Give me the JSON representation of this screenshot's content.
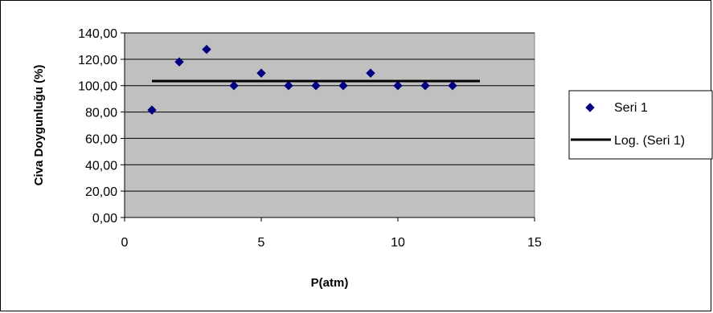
{
  "chart_data": {
    "type": "scatter",
    "title": "",
    "xlabel": "P(atm)",
    "ylabel": "Civa Doygunluğu (%)",
    "xlim": [
      0,
      15
    ],
    "ylim": [
      0,
      140
    ],
    "x_ticks": [
      "0",
      "5",
      "10",
      "15"
    ],
    "y_ticks": [
      "0,00",
      "20,00",
      "40,00",
      "60,00",
      "80,00",
      "100,00",
      "120,00",
      "140,00"
    ],
    "grid": "horizontal",
    "plot_background": "#c0c0c0",
    "legend_position": "right",
    "series": [
      {
        "name": "Seri 1",
        "type": "scatter",
        "marker": "diamond",
        "color": "#000080",
        "x": [
          1,
          2,
          3,
          4,
          5,
          6,
          7,
          8,
          9,
          10,
          11,
          12
        ],
        "y": [
          81.5,
          118,
          127.5,
          100,
          109.5,
          100,
          100,
          100,
          109.5,
          100,
          100,
          100
        ]
      },
      {
        "name": "Log. (Seri 1)",
        "type": "line",
        "color": "#000000",
        "x": [
          1,
          13
        ],
        "y": [
          103.5,
          103.5
        ]
      }
    ]
  }
}
